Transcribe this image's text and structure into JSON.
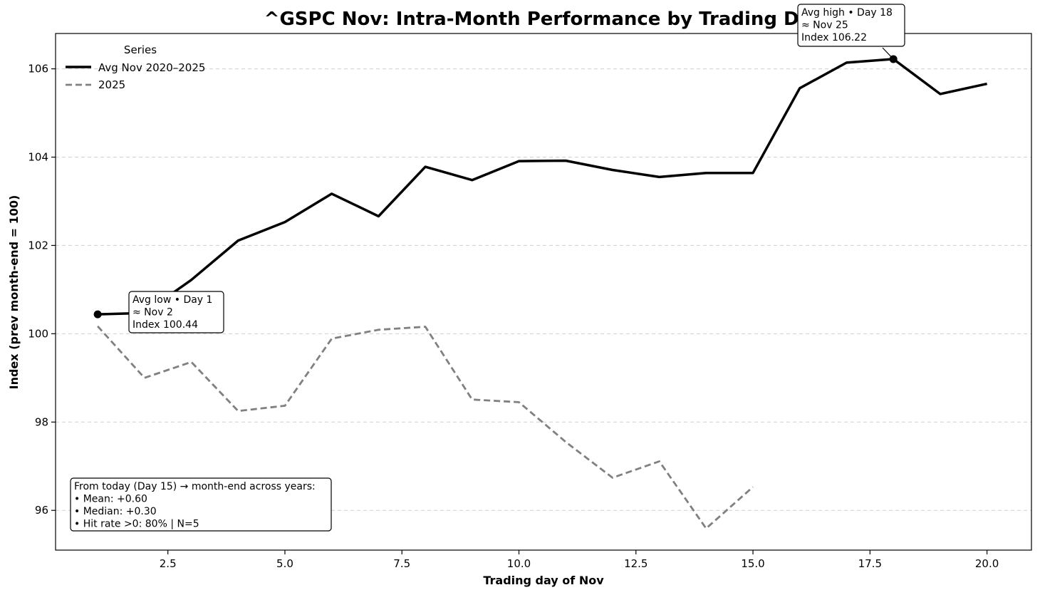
{
  "chart_data": {
    "type": "line",
    "title": "^GSPC Nov: Intra-Month Performance by Trading Day",
    "xlabel": "Trading day of Nov",
    "ylabel": "Index (prev month-end = 100)",
    "xlim": [
      0.1,
      20.95
    ],
    "ylim": [
      95.1,
      106.8
    ],
    "x_ticks": [
      2.5,
      5.0,
      7.5,
      10.0,
      12.5,
      15.0,
      17.5,
      20.0
    ],
    "x_tick_labels": [
      "2.5",
      "5.0",
      "7.5",
      "10.0",
      "12.5",
      "15.0",
      "17.5",
      "20.0"
    ],
    "y_ticks": [
      96,
      98,
      100,
      102,
      104,
      106
    ],
    "y_tick_labels": [
      "96",
      "98",
      "100",
      "102",
      "104",
      "106"
    ],
    "grid": "y-dashed",
    "legend": {
      "title": "Series",
      "placement": "top-left"
    },
    "series": [
      {
        "name": "Avg Nov 2020–2025",
        "style": "solid",
        "color": "#000000",
        "x": [
          1,
          2,
          3,
          4,
          5,
          6,
          7,
          8,
          9,
          10,
          11,
          12,
          13,
          14,
          15,
          16,
          17,
          18,
          19,
          20
        ],
        "values": [
          100.44,
          100.47,
          101.22,
          102.11,
          102.53,
          103.17,
          102.66,
          103.78,
          103.48,
          103.91,
          103.92,
          103.71,
          103.55,
          103.64,
          103.64,
          105.56,
          106.14,
          106.22,
          105.43,
          105.66
        ]
      },
      {
        "name": "2025",
        "style": "dashed",
        "color": "#808080",
        "x": [
          1,
          2,
          3,
          4,
          5,
          6,
          7,
          8,
          9,
          10,
          11,
          12,
          13,
          14,
          15
        ],
        "values": [
          100.17,
          99.0,
          99.36,
          98.25,
          98.37,
          99.89,
          100.09,
          100.16,
          98.51,
          98.45,
          97.55,
          96.74,
          97.11,
          95.59,
          96.53
        ]
      }
    ],
    "annotations": {
      "low": {
        "x": 1,
        "y": 100.44,
        "lines": [
          "Avg low • Day 1",
          "≈ Nov 2",
          "Index 100.44"
        ]
      },
      "high": {
        "x": 18,
        "y": 106.22,
        "lines": [
          "Avg high • Day 18",
          "≈ Nov 25",
          "Index 106.22"
        ]
      },
      "stats": {
        "lines": [
          "From today (Day 15) → month-end across years:",
          "• Mean: +0.60",
          "• Median: +0.30",
          "• Hit rate >0: 80%  | N=5"
        ]
      }
    }
  }
}
